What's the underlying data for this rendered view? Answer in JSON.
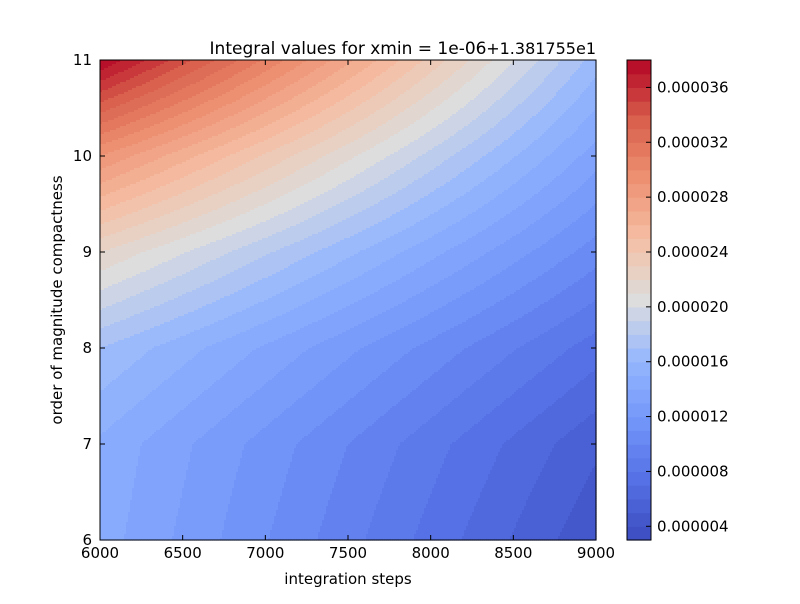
{
  "chart_data": {
    "type": "heatmap",
    "title": "Integral values for xmin = 1e-06",
    "xlabel": "integration steps",
    "ylabel": "order of magnitude compactness",
    "offset_label": "+1.381755e1",
    "offset_value": 13.81755,
    "colormap": "coolwarm",
    "xlim": [
      6000,
      9000
    ],
    "ylim": [
      6,
      11
    ],
    "x_ticks": [
      "6000",
      "6500",
      "7000",
      "7500",
      "8000",
      "8500",
      "9000"
    ],
    "y_ticks": [
      "6",
      "7",
      "8",
      "9",
      "10",
      "11"
    ],
    "colorbar": {
      "range": [
        3e-06,
        3.8e-05
      ],
      "ticks": [
        "0.000004",
        "0.000008",
        "0.000012",
        "0.000016",
        "0.000020",
        "0.000024",
        "0.000028",
        "0.000032",
        "0.000036"
      ]
    },
    "x": [
      6000,
      9000
    ],
    "y": [
      6,
      7,
      8,
      9,
      10,
      11
    ],
    "z_offset_rows": [
      {
        "y": 6,
        "values": [
          1.45e-05,
          4.2e-06
        ]
      },
      {
        "y": 7,
        "values": [
          1.48e-05,
          5.2e-06
        ]
      },
      {
        "y": 8,
        "values": [
          1.7e-05,
          7.5e-06
        ]
      },
      {
        "y": 9,
        "values": [
          2.2e-05,
          1.05e-05
        ]
      },
      {
        "y": 10,
        "values": [
          2.9e-05,
          1.35e-05
        ]
      },
      {
        "y": 11,
        "values": [
          3.8e-05,
          1.65e-05
        ]
      }
    ]
  }
}
